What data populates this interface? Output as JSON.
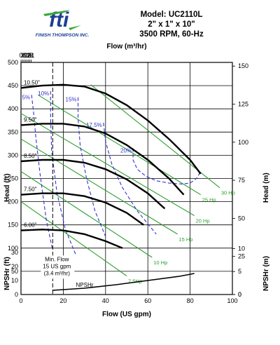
{
  "header": {
    "logo_text": "FINISH THOMPSON INC.",
    "model": "Model: UC2110L",
    "size": "2\" x 1\" x 10\"",
    "speed": "3500 RPM, 60-Hz"
  },
  "colors": {
    "head_curve": "#000000",
    "efficiency": "#3333cc",
    "horsepower": "#2e9e2e",
    "grid": "#000000",
    "logo_blue": "#1c3f95",
    "logo_green": "#3aa935"
  },
  "chart_data": {
    "type": "line",
    "xlabel": "Flow (US gpm)",
    "x2label": "Flow (m³/hr)",
    "ylabel": "Head (ft)",
    "y2label": "Head (m)",
    "npsh_label": "NPSHr (ft)",
    "npsh_right_label": "NPSHr (m)",
    "xlim": [
      0,
      100
    ],
    "ylim": [
      0,
      500
    ],
    "x_ticks": [
      "0",
      "20",
      "40",
      "60",
      "80",
      "100"
    ],
    "y_ticks": [
      "0",
      "50",
      "100",
      "150",
      "200",
      "250",
      "300",
      "350",
      "400",
      "450",
      "500"
    ],
    "x2_ticks": [
      "0",
      "3",
      "6",
      "9",
      "12",
      "15",
      "18",
      "21"
    ],
    "y2_ticks": [
      "0",
      "25",
      "50",
      "75",
      "100",
      "125",
      "150"
    ],
    "npsh_left_ticks": [
      "0",
      "10",
      "20",
      "30"
    ],
    "npsh_right_ticks": [
      "0",
      "5",
      "10"
    ],
    "grid": true,
    "head_curves": [
      {
        "name": "10.50\"",
        "x": [
          0,
          10,
          20,
          30,
          40,
          50,
          60,
          70,
          80,
          85
        ],
        "y": [
          445,
          450,
          452,
          448,
          433,
          408,
          375,
          335,
          290,
          260
        ]
      },
      {
        "name": "9.50\"",
        "x": [
          0,
          10,
          20,
          30,
          40,
          50,
          60,
          70,
          77
        ],
        "y": [
          365,
          368,
          368,
          362,
          347,
          322,
          290,
          250,
          215
        ]
      },
      {
        "name": "8.50\"",
        "x": [
          0,
          10,
          20,
          30,
          40,
          50,
          60,
          68
        ],
        "y": [
          287,
          290,
          290,
          284,
          270,
          248,
          218,
          185
        ]
      },
      {
        "name": "7.50\"",
        "x": [
          0,
          10,
          20,
          30,
          40,
          50,
          58
        ],
        "y": [
          215,
          218,
          218,
          212,
          198,
          176,
          150
        ]
      },
      {
        "name": "6.00\"",
        "x": [
          0,
          10,
          20,
          30,
          40,
          48
        ],
        "y": [
          138,
          140,
          138,
          130,
          115,
          100
        ]
      }
    ],
    "efficiency_curves": [
      {
        "name": "5%",
        "x": [
          5,
          6,
          7,
          9,
          12,
          15
        ],
        "y": [
          430,
          390,
          340,
          260,
          160,
          95
        ]
      },
      {
        "name": "10%",
        "x": [
          14,
          14,
          14.5,
          17,
          21,
          26
        ],
        "y": [
          438,
          380,
          310,
          220,
          140,
          85
        ]
      },
      {
        "name": "15%",
        "x": [
          27,
          27,
          28,
          31,
          35,
          40
        ],
        "y": [
          425,
          380,
          320,
          250,
          180,
          125
        ]
      },
      {
        "name": "17.5%",
        "x": [
          39,
          40,
          43,
          48,
          55,
          64
        ],
        "y": [
          370,
          330,
          280,
          230,
          180,
          130
        ]
      },
      {
        "name": "20%",
        "x": [
          53,
          53,
          55,
          59,
          64,
          70,
          76,
          80,
          83,
          85
        ],
        "y": [
          315,
          290,
          270,
          255,
          245,
          240,
          238,
          240,
          250,
          265
        ]
      }
    ],
    "hp_curves": [
      {
        "name": "7.5Hp",
        "x": [
          0,
          50
        ],
        "y": [
          200,
          40
        ]
      },
      {
        "name": "10 Hp",
        "x": [
          0,
          62
        ],
        "y": [
          265,
          80
        ]
      },
      {
        "name": "15 Hp",
        "x": [
          0,
          74
        ],
        "y": [
          335,
          130
        ]
      },
      {
        "name": "20 Hp",
        "x": [
          0,
          82
        ],
        "y": [
          390,
          170
        ]
      },
      {
        "name": "25 Hp",
        "x": [
          8,
          85
        ],
        "y": [
          430,
          215
        ]
      },
      {
        "name": "30 Hp",
        "x": [
          33,
          94
        ],
        "y": [
          452,
          230
        ]
      }
    ],
    "npshr": {
      "label": "NPSHr",
      "x": [
        15,
        30,
        45,
        60,
        75,
        82
      ],
      "y_ft": [
        3,
        4.5,
        7,
        10,
        13,
        15
      ]
    },
    "min_flow": {
      "x": 15,
      "label_line1": "Min. Flow",
      "label_line2": "15 US gpm",
      "label_line3": "(3.4 m³/hr)"
    }
  }
}
